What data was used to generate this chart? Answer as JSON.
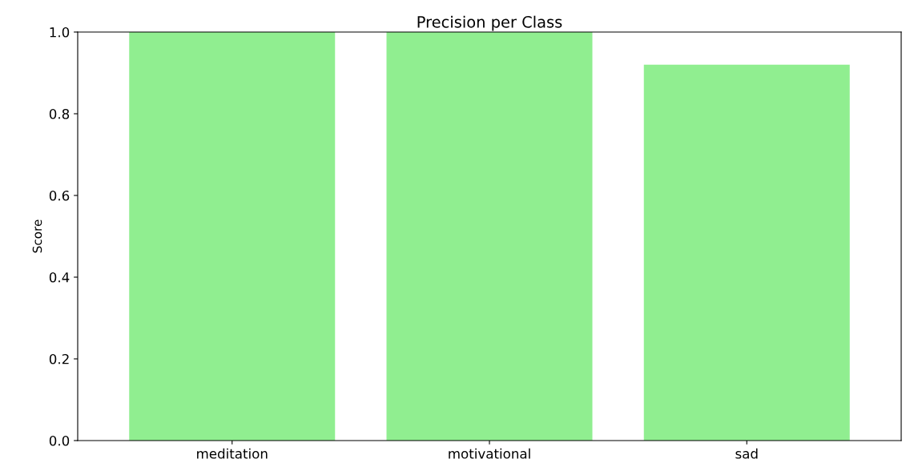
{
  "chart_data": {
    "type": "bar",
    "title": "Precision per Class",
    "ylabel": "Score",
    "categories": [
      "meditation",
      "motivational",
      "sad"
    ],
    "values": [
      1.0,
      1.0,
      0.92
    ],
    "color": "#90ee90",
    "ylim": [
      0,
      1.0
    ],
    "yticks": [
      {
        "value": 0,
        "label": "0.0"
      },
      {
        "value": 0.2,
        "label": "0.2"
      },
      {
        "value": 0.4,
        "label": "0.4"
      },
      {
        "value": 0.6,
        "label": "0.6"
      },
      {
        "value": 0.8,
        "label": "0.8"
      },
      {
        "value": 1.0,
        "label": "1.0"
      }
    ],
    "grid": false
  }
}
